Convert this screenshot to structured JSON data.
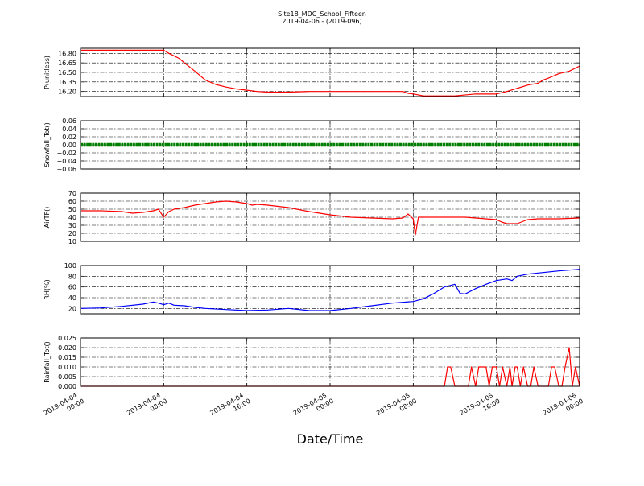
{
  "title": "Site18_MDC_School_Fifteen",
  "subtitle": "2019-04-06 - (2019-096)",
  "xlabel": "Date/Time",
  "x_ticks": [
    {
      "t": 0,
      "line1": "2019-04-04",
      "line2": "00:00"
    },
    {
      "t": 8,
      "line1": "2019-04-04",
      "line2": "08:00"
    },
    {
      "t": 16,
      "line1": "2019-04-04",
      "line2": "16:00"
    },
    {
      "t": 24,
      "line1": "2019-04-05",
      "line2": "00:00"
    },
    {
      "t": 32,
      "line1": "2019-04-05",
      "line2": "08:00"
    },
    {
      "t": 40,
      "line1": "2019-04-05",
      "line2": "16:00"
    },
    {
      "t": 48,
      "line1": "2019-04-06",
      "line2": "00:00"
    }
  ],
  "colors": {
    "pressure": "#ff0000",
    "snowfall": "#008000",
    "airtemp": "#ff0000",
    "rh": "#0000ff",
    "rainfall": "#ff0000"
  },
  "chart_data": [
    {
      "type": "line",
      "ylabel": "P(unitless)",
      "ylim": [
        16.12,
        16.88
      ],
      "yticks": [
        "16.80",
        "16.65",
        "16.50",
        "16.35",
        "16.20"
      ],
      "ytick_values": [
        16.8,
        16.65,
        16.5,
        16.35,
        16.2
      ],
      "grid": true,
      "color_key": "pressure",
      "marker": false,
      "x": [
        0,
        4,
        8,
        8.5,
        9,
        9.5,
        10,
        11,
        12,
        13,
        14,
        15,
        16,
        17,
        18,
        20,
        22,
        24,
        26,
        28,
        30,
        31,
        31.5,
        32,
        33,
        34,
        36,
        38,
        40,
        41,
        42,
        43,
        44,
        44.5,
        45,
        46,
        47,
        48
      ],
      "y": [
        16.85,
        16.85,
        16.85,
        16.8,
        16.76,
        16.72,
        16.65,
        16.52,
        16.38,
        16.31,
        16.27,
        16.24,
        16.22,
        16.2,
        16.19,
        16.19,
        16.2,
        16.2,
        16.2,
        16.2,
        16.2,
        16.2,
        16.17,
        16.16,
        16.13,
        16.13,
        16.13,
        16.16,
        16.16,
        16.2,
        16.25,
        16.3,
        16.33,
        16.38,
        16.41,
        16.48,
        16.52,
        16.6
      ]
    },
    {
      "type": "line",
      "ylabel": "Snowfall_Tot()",
      "ylim": [
        -0.06,
        0.06
      ],
      "yticks": [
        "0.06",
        "0.04",
        "0.02",
        "0.00",
        "−0.02",
        "−0.04",
        "−0.06"
      ],
      "ytick_values": [
        0.06,
        0.04,
        0.02,
        0.0,
        -0.02,
        -0.04,
        -0.06
      ],
      "grid": true,
      "color_key": "snowfall",
      "marker": true,
      "x": [
        0,
        48
      ],
      "y": [
        0,
        0
      ]
    },
    {
      "type": "line",
      "ylabel": "AirTF()",
      "ylim": [
        10,
        70
      ],
      "yticks": [
        "70",
        "60",
        "50",
        "40",
        "30",
        "20",
        "10"
      ],
      "ytick_values": [
        70,
        60,
        50,
        40,
        30,
        20,
        10
      ],
      "grid": true,
      "color_key": "airtemp",
      "marker": false,
      "x": [
        0,
        2,
        4,
        5,
        6,
        7,
        7.5,
        8,
        8.5,
        9,
        10,
        11,
        12,
        13,
        14,
        15,
        16,
        16.5,
        17,
        18,
        20,
        22,
        24,
        26,
        28,
        30,
        31,
        31.5,
        32,
        32.2,
        32.5,
        33,
        35,
        37,
        38,
        39,
        40,
        40.5,
        41,
        42,
        43,
        44,
        46,
        48
      ],
      "y": [
        48,
        48,
        47,
        45,
        46,
        48,
        50,
        40,
        47,
        50,
        52,
        55,
        57,
        59,
        60,
        59,
        57,
        55,
        56,
        55,
        52,
        47,
        43,
        40,
        39,
        38,
        39,
        44,
        38,
        18,
        40,
        40,
        40,
        40,
        39,
        38,
        37,
        34,
        32,
        32,
        37,
        38,
        38,
        39
      ]
    },
    {
      "type": "line",
      "ylabel": "RH(%)",
      "ylim": [
        10,
        100
      ],
      "yticks": [
        "100",
        "80",
        "60",
        "40",
        "20"
      ],
      "ytick_values": [
        100,
        80,
        60,
        40,
        20
      ],
      "grid": true,
      "color_key": "rh",
      "marker": false,
      "x": [
        0,
        2,
        4,
        6,
        7,
        7.5,
        8,
        8.5,
        9,
        10,
        11,
        12,
        14,
        16,
        18,
        20,
        22,
        24,
        26,
        28,
        30,
        32,
        33,
        34,
        35,
        36,
        36.5,
        37,
        38,
        39,
        40,
        41,
        41.5,
        42,
        43,
        44,
        46,
        48
      ],
      "y": [
        20,
        21,
        24,
        28,
        32,
        30,
        27,
        30,
        26,
        25,
        22,
        20,
        18,
        16,
        17,
        20,
        16,
        16,
        20,
        25,
        30,
        33,
        38,
        48,
        60,
        65,
        48,
        47,
        57,
        65,
        72,
        75,
        72,
        80,
        84,
        86,
        90,
        93
      ]
    },
    {
      "type": "line",
      "ylabel": "Rainfall_Tot()",
      "ylim": [
        0,
        0.025
      ],
      "yticks": [
        "0.025",
        "0.020",
        "0.015",
        "0.010",
        "0.005",
        "0.000"
      ],
      "ytick_values": [
        0.025,
        0.02,
        0.015,
        0.01,
        0.005,
        0.0
      ],
      "grid": true,
      "color_key": "rainfall",
      "marker": false,
      "x": [
        0,
        35.0,
        35.3,
        35.6,
        36,
        37.3,
        37.6,
        38,
        38.3,
        39.0,
        39.3,
        39.6,
        40.0,
        40.3,
        40.6,
        41.0,
        41.3,
        41.5,
        41.8,
        42.0,
        42.3,
        42.6,
        43.0,
        43.3,
        43.6,
        44.0,
        44.3,
        44.6,
        45.0,
        45.3,
        45.6,
        46.0,
        46.3,
        46.6,
        47.0,
        47.3,
        47.6,
        48.0
      ],
      "y": [
        0,
        0,
        0.01,
        0.01,
        0,
        0,
        0.01,
        0,
        0.01,
        0.01,
        0,
        0.01,
        0.01,
        0,
        0.01,
        0,
        0.01,
        0,
        0.01,
        0.01,
        0,
        0.01,
        0,
        0,
        0.01,
        0,
        0,
        0,
        0,
        0.01,
        0.01,
        0,
        0,
        0.01,
        0.02,
        0,
        0.01,
        0
      ]
    }
  ]
}
